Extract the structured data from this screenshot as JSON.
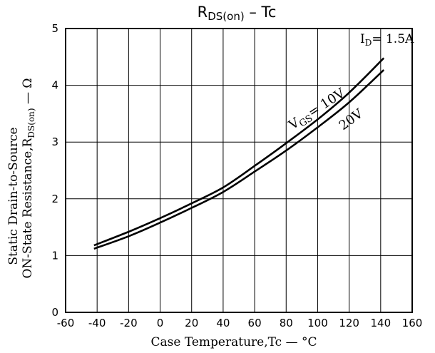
{
  "chart_data": {
    "type": "line",
    "title_main": "R",
    "title_sub": "DS(on)",
    "title_suffix": "  –  Tc",
    "condition_prefix": "I",
    "condition_sub": "D",
    "condition_value": "= 1.5A",
    "xlabel": "Case Temperature,Tc — °C",
    "ylabel_line1": "Static Drain-to-Source",
    "ylabel_line2_main": "ON-State Resistance,R",
    "ylabel_line2_sub": "DS(on)",
    "ylabel_line2_suffix": " — Ω",
    "xlim": [
      -60,
      160
    ],
    "ylim": [
      0,
      5
    ],
    "x_ticks": [
      -60,
      -40,
      -20,
      0,
      20,
      40,
      60,
      80,
      100,
      120,
      140,
      160
    ],
    "y_ticks": [
      0,
      1,
      2,
      3,
      4,
      5
    ],
    "grid": true,
    "series": [
      {
        "name_prefix": "V",
        "name_sub": "GS",
        "name_value": "= 10V",
        "x": [
          -42,
          -20,
          0,
          20,
          40,
          60,
          80,
          100,
          120,
          142
        ],
        "values": [
          1.18,
          1.42,
          1.66,
          1.92,
          2.2,
          2.58,
          2.98,
          3.4,
          3.87,
          4.48
        ]
      },
      {
        "name": "20V",
        "x": [
          -42,
          -20,
          0,
          20,
          40,
          60,
          80,
          100,
          120,
          142
        ],
        "values": [
          1.12,
          1.34,
          1.58,
          1.84,
          2.12,
          2.48,
          2.85,
          3.26,
          3.7,
          4.27
        ]
      }
    ]
  }
}
